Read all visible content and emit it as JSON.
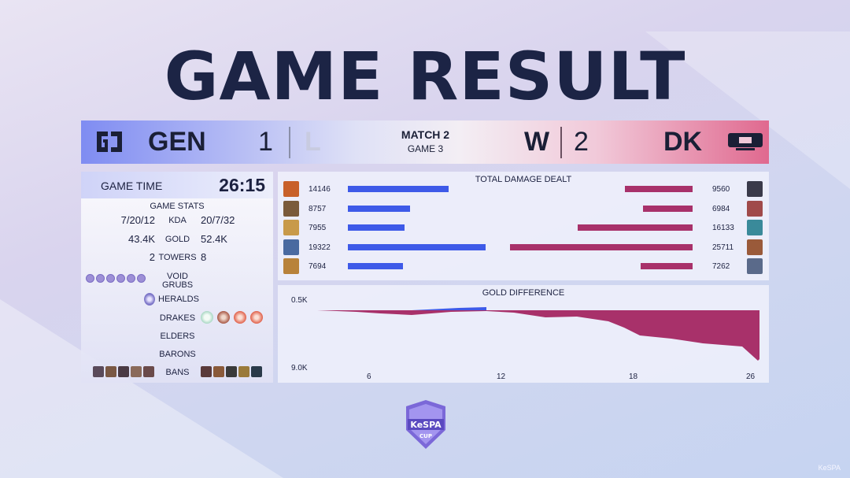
{
  "title": "GAME RESULT",
  "scoreboard": {
    "left_team": "GEN",
    "left_score": "1",
    "left_result": "L",
    "match_label": "MATCH 2",
    "game_label": "GAME 3",
    "right_result": "W",
    "right_score": "2",
    "right_team": "DK"
  },
  "game_time": {
    "label": "GAME TIME",
    "value": "26:15"
  },
  "game_stats": {
    "title": "GAME STATS",
    "rows": [
      {
        "label": "KDA",
        "left": "7/20/12",
        "right": "20/7/32"
      },
      {
        "label": "GOLD",
        "left": "43.4K",
        "right": "52.4K"
      },
      {
        "label": "TOWERS",
        "left": "2",
        "right": "8"
      }
    ],
    "objectives": {
      "void_grubs": "VOID GRUBS",
      "heralds": "HERALDS",
      "drakes": "DRAKES",
      "elders": "ELDERS",
      "barons": "BARONS",
      "bans": "BANS"
    },
    "left_void_grubs": 6,
    "left_heralds": 1,
    "right_drakes": [
      "cloud",
      "chemtech",
      "infernal",
      "infernal"
    ]
  },
  "damage": {
    "title": "TOTAL DAMAGE DEALT",
    "left": [
      "14146",
      "8757",
      "7955",
      "19322",
      "7694"
    ],
    "right": [
      "9560",
      "6984",
      "16133",
      "25711",
      "7262"
    ],
    "left_values": [
      14146,
      8757,
      7955,
      19322,
      7694
    ],
    "right_values": [
      9560,
      6984,
      16133,
      25711,
      7262
    ]
  },
  "gold_diff": {
    "title": "GOLD DIFFERENCE",
    "y_top": "0.5K",
    "y_bottom": "9.0K",
    "x_ticks": [
      "6",
      "12",
      "18",
      "26"
    ]
  },
  "colors": {
    "blue": "#3e5ae8",
    "red": "#a8316a"
  },
  "watermark": "KeSPA"
}
